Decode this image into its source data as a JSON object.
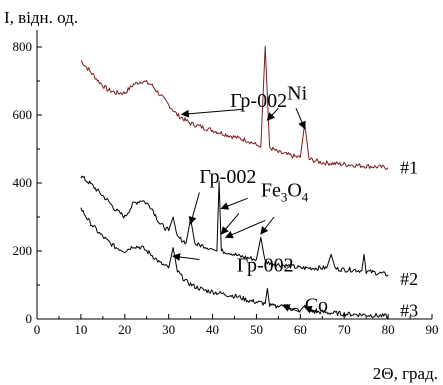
{
  "chart_data": {
    "type": "line",
    "xlabel": "2Θ, град.",
    "ylabel": "I, відн. од.",
    "xlim": [
      0,
      90
    ],
    "ylim": [
      0,
      850
    ],
    "x_ticks": [
      "0",
      "10",
      "20",
      "30",
      "40",
      "50",
      "60",
      "70",
      "80",
      "90"
    ],
    "y_ticks": [
      "0",
      "200",
      "400",
      "600",
      "800"
    ],
    "grid": false,
    "series": [
      {
        "name": "#1",
        "color": "#7a1f1f",
        "points": [
          [
            10,
            760
          ],
          [
            12,
            730
          ],
          [
            14,
            700
          ],
          [
            16,
            675
          ],
          [
            18,
            665
          ],
          [
            20,
            665
          ],
          [
            22,
            690
          ],
          [
            24,
            700
          ],
          [
            26,
            690
          ],
          [
            28,
            660
          ],
          [
            30,
            630
          ],
          [
            32,
            600
          ],
          [
            35,
            575
          ],
          [
            40,
            555
          ],
          [
            45,
            535
          ],
          [
            48,
            525
          ],
          [
            50,
            512
          ],
          [
            51,
            505
          ],
          [
            52,
            802
          ],
          [
            53,
            505
          ],
          [
            55,
            490
          ],
          [
            58,
            480
          ],
          [
            60,
            475
          ],
          [
            61,
            575
          ],
          [
            62,
            470
          ],
          [
            65,
            460
          ],
          [
            70,
            455
          ],
          [
            75,
            450
          ],
          [
            80,
            445
          ]
        ]
      },
      {
        "name": "#2",
        "color": "#000000",
        "points": [
          [
            10,
            420
          ],
          [
            12,
            400
          ],
          [
            14,
            375
          ],
          [
            16,
            350
          ],
          [
            18,
            320
          ],
          [
            20,
            300
          ],
          [
            22,
            340
          ],
          [
            24,
            350
          ],
          [
            26,
            330
          ],
          [
            28,
            280
          ],
          [
            30,
            260
          ],
          [
            31,
            300
          ],
          [
            32,
            240
          ],
          [
            34,
            225
          ],
          [
            35,
            295
          ],
          [
            36,
            220
          ],
          [
            38,
            215
          ],
          [
            40,
            205
          ],
          [
            41,
            200
          ],
          [
            41.5,
            405
          ],
          [
            42,
            200
          ],
          [
            44,
            195
          ],
          [
            46,
            185
          ],
          [
            48,
            180
          ],
          [
            50,
            175
          ],
          [
            51,
            240
          ],
          [
            52,
            168
          ],
          [
            55,
            160
          ],
          [
            58,
            155
          ],
          [
            60,
            150
          ],
          [
            63,
            150
          ],
          [
            66,
            150
          ],
          [
            67,
            190
          ],
          [
            68,
            148
          ],
          [
            70,
            145
          ],
          [
            72,
            145
          ],
          [
            74,
            142
          ],
          [
            74.5,
            190
          ],
          [
            75,
            140
          ],
          [
            78,
            135
          ],
          [
            80,
            130
          ]
        ]
      },
      {
        "name": "#3",
        "color": "#000000",
        "points": [
          [
            10,
            325
          ],
          [
            12,
            285
          ],
          [
            14,
            255
          ],
          [
            16,
            230
          ],
          [
            18,
            210
          ],
          [
            20,
            200
          ],
          [
            22,
            215
          ],
          [
            24,
            210
          ],
          [
            26,
            190
          ],
          [
            28,
            165
          ],
          [
            30,
            150
          ],
          [
            31,
            210
          ],
          [
            32,
            140
          ],
          [
            34,
            110
          ],
          [
            36,
            95
          ],
          [
            38,
            85
          ],
          [
            40,
            80
          ],
          [
            42,
            75
          ],
          [
            44,
            70
          ],
          [
            46,
            65
          ],
          [
            48,
            55
          ],
          [
            50,
            50
          ],
          [
            52,
            45
          ],
          [
            52.5,
            90
          ],
          [
            53,
            40
          ],
          [
            55,
            35
          ],
          [
            56,
            45
          ],
          [
            58,
            30
          ],
          [
            60,
            25
          ],
          [
            61,
            40
          ],
          [
            62,
            22
          ],
          [
            65,
            20
          ],
          [
            70,
            15
          ],
          [
            75,
            12
          ],
          [
            80,
            8
          ]
        ]
      }
    ],
    "annotations": [
      {
        "text": "Гр-002",
        "x": 44,
        "y": 623
      },
      {
        "text": "Ni",
        "x": 57,
        "y": 645
      },
      {
        "text": "Гр-002",
        "x": 37,
        "y": 400
      },
      {
        "text": "Fe",
        "x": 51,
        "y": 360,
        "subs": [
          "3",
          "O",
          "4"
        ]
      },
      {
        "text": "Гр-002",
        "x": 45.5,
        "y": 140
      },
      {
        "text": "Co",
        "x": 61,
        "y": 22
      }
    ],
    "arrows": [
      {
        "from": [
          47,
          617
        ],
        "to": [
          33,
          602
        ]
      },
      {
        "from": [
          55,
          620
        ],
        "to": [
          52.5,
          585
        ]
      },
      {
        "from": [
          59,
          620
        ],
        "to": [
          61,
          560
        ]
      },
      {
        "from": [
          37,
          372
        ],
        "to": [
          35,
          280
        ]
      },
      {
        "from": [
          48,
          355
        ],
        "to": [
          42,
          325
        ]
      },
      {
        "from": [
          46,
          310
        ],
        "to": [
          42,
          250
        ]
      },
      {
        "from": [
          54,
          300
        ],
        "to": [
          51,
          250
        ]
      },
      {
        "from": [
          52,
          290
        ],
        "to": [
          43,
          240
        ]
      },
      {
        "from": [
          37,
          175
        ],
        "to": [
          31,
          185
        ]
      },
      {
        "from": [
          60,
          20
        ],
        "to": [
          56,
          40
        ]
      },
      {
        "from": [
          64,
          20
        ],
        "to": [
          61,
          35
        ]
      }
    ]
  }
}
